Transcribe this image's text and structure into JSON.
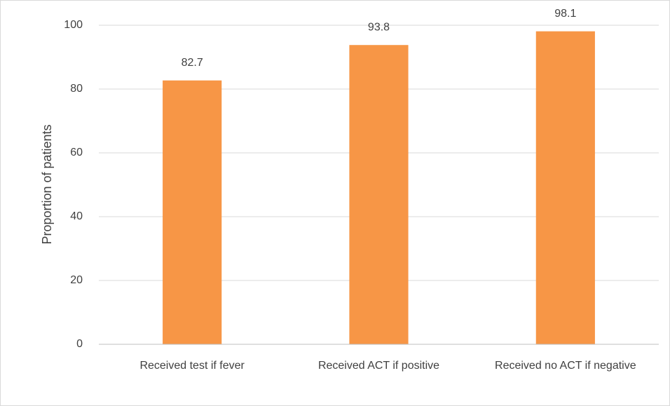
{
  "chart_data": {
    "type": "bar",
    "ylabel": "Proportion of patients",
    "categories": [
      "Received test if fever",
      "Received ACT if positive",
      "Received no ACT if negative"
    ],
    "values": [
      82.7,
      93.8,
      98.1
    ],
    "color": "#f79646",
    "ylim": [
      0,
      100
    ],
    "yticks": [
      0,
      20,
      40,
      60,
      80,
      100
    ],
    "grid": true
  }
}
